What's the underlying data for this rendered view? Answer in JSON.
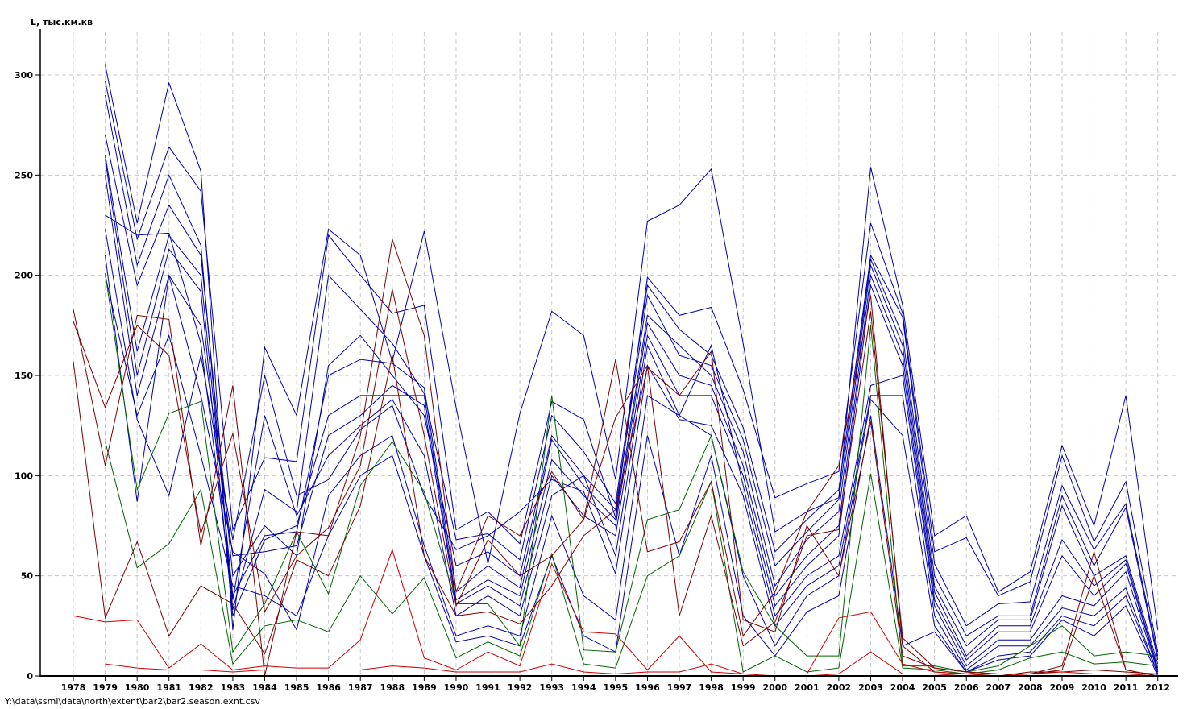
{
  "chart_data": {
    "type": "line",
    "ylabel": "L, тыс.км.кв",
    "xlabel": "",
    "categories": [
      "1978",
      "1979",
      "1980",
      "1981",
      "1982",
      "1983",
      "1984",
      "1985",
      "1986",
      "1987",
      "1988",
      "1989",
      "1990",
      "1991",
      "1992",
      "1993",
      "1994",
      "1995",
      "1996",
      "1997",
      "1998",
      "1999",
      "2000",
      "2001",
      "2002",
      "2003",
      "2004",
      "2005",
      "2006",
      "2007",
      "2008",
      "2009",
      "2010",
      "2011",
      "2012"
    ],
    "yticks": [
      0,
      50,
      100,
      150,
      200,
      250,
      300
    ],
    "ylim": [
      0,
      320
    ],
    "grid": true,
    "colors": {
      "blue": "#0000aa",
      "green": "#006400",
      "darkred": "#7a0000",
      "red": "#cc0000",
      "grid": "#c8c8c8"
    },
    "series": [
      {
        "color": "blue",
        "values": [
          null,
          305,
          226,
          296,
          252,
          23,
          164,
          130,
          223,
          210,
          157,
          222,
          134,
          56,
          131,
          182,
          170,
          98,
          227,
          235,
          253,
          166,
          72,
          82,
          89,
          254,
          185,
          70,
          80,
          42,
          52,
          115,
          75,
          140,
          23
        ]
      },
      {
        "color": "blue",
        "values": [
          null,
          297,
          218,
          264,
          242,
          73,
          109,
          107,
          220,
          200,
          181,
          185,
          73,
          82,
          66,
          137,
          128,
          79,
          199,
          180,
          184,
          143,
          89,
          96,
          102,
          226,
          181,
          62,
          69,
          40,
          47,
          110,
          67,
          97,
          12
        ]
      },
      {
        "color": "blue",
        "values": [
          null,
          290,
          205,
          250,
          215,
          33,
          93,
          82,
          200,
          183,
          166,
          141,
          68,
          71,
          58,
          130,
          112,
          86,
          195,
          173,
          160,
          124,
          62,
          78,
          93,
          210,
          179,
          56,
          25,
          36,
          37,
          95,
          63,
          86,
          10
        ]
      },
      {
        "color": "blue",
        "values": [
          null,
          270,
          195,
          235,
          210,
          50,
          75,
          60,
          155,
          170,
          150,
          130,
          55,
          62,
          50,
          120,
          100,
          83,
          190,
          160,
          155,
          118,
          55,
          72,
          88,
          208,
          170,
          50,
          20,
          30,
          30,
          90,
          55,
          84,
          8
        ]
      },
      {
        "color": "blue",
        "values": [
          null,
          260,
          162,
          220,
          200,
          40,
          70,
          72,
          150,
          158,
          156,
          144,
          42,
          55,
          44,
          118,
          95,
          78,
          180,
          165,
          150,
          112,
          45,
          68,
          82,
          205,
          165,
          45,
          15,
          28,
          28,
          85,
          50,
          60,
          6
        ]
      },
      {
        "color": "blue",
        "values": [
          null,
          258,
          150,
          213,
          192,
          30,
          68,
          75,
          130,
          140,
          140,
          140,
          38,
          48,
          40,
          108,
          90,
          75,
          176,
          150,
          145,
          105,
          40,
          60,
          75,
          200,
          160,
          42,
          10,
          25,
          25,
          68,
          45,
          58,
          4
        ]
      },
      {
        "color": "blue",
        "values": [
          null,
          250,
          140,
          200,
          175,
          60,
          62,
          65,
          120,
          130,
          145,
          135,
          36,
          45,
          35,
          100,
          80,
          70,
          170,
          140,
          140,
          100,
          35,
          55,
          70,
          195,
          155,
          38,
          8,
          22,
          22,
          60,
          40,
          56,
          3
        ]
      },
      {
        "color": "blue",
        "values": [
          null,
          230,
          220,
          221,
          166,
          38,
          130,
          80,
          110,
          125,
          138,
          110,
          30,
          40,
          30,
          90,
          100,
          60,
          165,
          130,
          165,
          95,
          30,
          50,
          60,
          145,
          150,
          35,
          5,
          18,
          18,
          40,
          35,
          52,
          2
        ]
      },
      {
        "color": "blue",
        "values": [
          null,
          223,
          128,
          90,
          160,
          68,
          150,
          90,
          98,
          123,
          135,
          90,
          63,
          70,
          82,
          98,
          92,
          51,
          155,
          128,
          125,
          90,
          25,
          45,
          55,
          140,
          140,
          30,
          3,
          15,
          15,
          34,
          30,
          44,
          1
        ]
      },
      {
        "color": "blue",
        "values": [
          null,
          210,
          87,
          200,
          140,
          62,
          51,
          23,
          90,
          110,
          120,
          65,
          20,
          25,
          20,
          80,
          40,
          28,
          140,
          130,
          120,
          50,
          15,
          40,
          50,
          138,
          120,
          25,
          2,
          10,
          12,
          30,
          25,
          40,
          1
        ]
      },
      {
        "color": "blue",
        "values": [
          null,
          200,
          130,
          170,
          110,
          45,
          40,
          30,
          70,
          100,
          110,
          60,
          17,
          20,
          15,
          60,
          20,
          12,
          120,
          60,
          110,
          30,
          10,
          32,
          40,
          130,
          15,
          22,
          2,
          8,
          10,
          28,
          20,
          35,
          0
        ]
      },
      {
        "color": "green",
        "values": [
          null,
          201,
          93,
          131,
          137,
          12,
          36,
          72,
          41,
          95,
          117,
          92,
          36,
          36,
          15,
          140,
          13,
          12,
          78,
          83,
          120,
          52,
          25,
          10,
          10,
          175,
          5,
          5,
          2,
          5,
          15,
          25,
          10,
          12,
          10
        ]
      },
      {
        "color": "green",
        "values": [
          null,
          117,
          54,
          66,
          93,
          6,
          25,
          28,
          22,
          50,
          31,
          49,
          9,
          17,
          10,
          61,
          6,
          4,
          50,
          60,
          97,
          2,
          10,
          2,
          4,
          101,
          4,
          3,
          1,
          3,
          9,
          12,
          6,
          7,
          5
        ]
      },
      {
        "color": "darkred",
        "values": [
          183,
          105,
          180,
          178,
          65,
          145,
          0,
          72,
          70,
          120,
          218,
          170,
          42,
          80,
          70,
          102,
          78,
          158,
          62,
          67,
          97,
          20,
          42,
          82,
          105,
          190,
          15,
          2,
          1,
          0,
          2,
          2,
          3,
          2,
          1
        ]
      },
      {
        "color": "darkred",
        "values": [
          177,
          134,
          175,
          160,
          71,
          121,
          32,
          60,
          74,
          105,
          193,
          120,
          35,
          68,
          50,
          60,
          78,
          129,
          155,
          30,
          80,
          15,
          27,
          70,
          73,
          182,
          19,
          4,
          2,
          1,
          1,
          5,
          62,
          3,
          0
        ]
      },
      {
        "color": "darkred",
        "values": [
          157,
          29,
          67,
          20,
          45,
          36,
          11,
          58,
          50,
          85,
          160,
          60,
          30,
          32,
          26,
          45,
          70,
          83,
          154,
          140,
          162,
          28,
          22,
          75,
          50,
          127,
          10,
          4,
          2,
          1,
          1,
          3,
          50,
          3,
          0
        ]
      },
      {
        "color": "red",
        "values": [
          30,
          27,
          28,
          4,
          16,
          3,
          5,
          4,
          4,
          18,
          63,
          9,
          3,
          12,
          5,
          56,
          22,
          21,
          3,
          20,
          2,
          1,
          1,
          1,
          29,
          32,
          6,
          2,
          1,
          0,
          1,
          2,
          1,
          1,
          0
        ]
      },
      {
        "color": "red",
        "values": [
          null,
          6,
          4,
          3,
          3,
          2,
          3,
          3,
          3,
          3,
          5,
          4,
          2,
          2,
          2,
          6,
          2,
          1,
          2,
          2,
          6,
          1,
          0,
          0,
          1,
          12,
          1,
          1,
          0,
          0,
          0,
          0,
          0,
          0,
          0
        ]
      }
    ]
  },
  "footer": {
    "path": "Y:\\data\\ssmi\\data\\north\\extent\\bar2\\bar2.season.exnt.csv"
  }
}
